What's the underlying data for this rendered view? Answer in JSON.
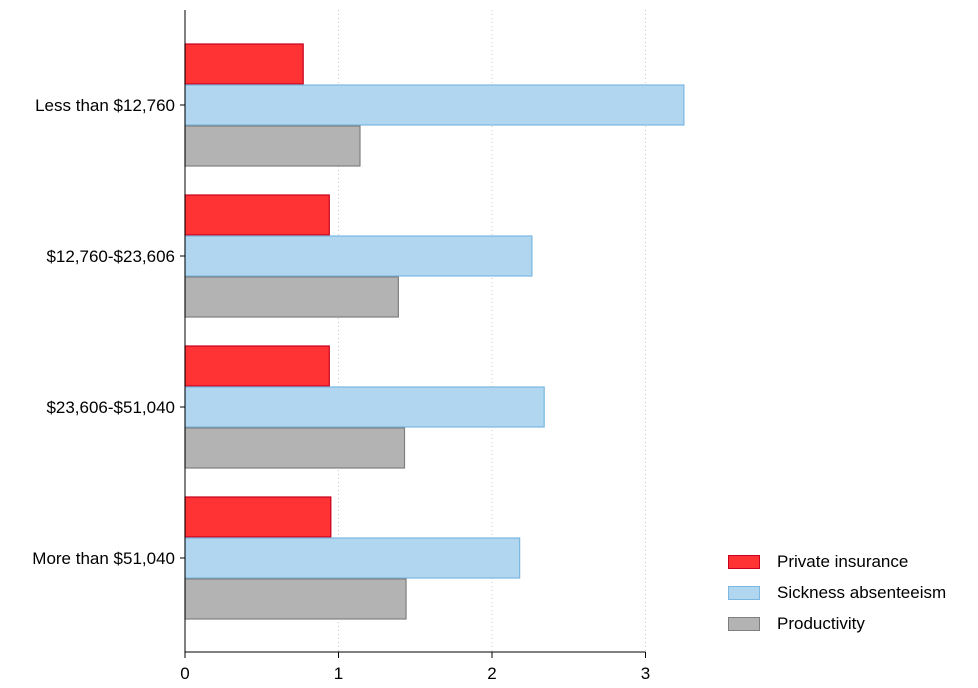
{
  "chart_data": {
    "type": "bar",
    "orientation": "horizontal",
    "categories": [
      "Less than $12,760",
      "$12,760-$23,606",
      "$23,606-$51,040",
      "More than $51,040"
    ],
    "series": [
      {
        "name": "Private insurance",
        "values": [
          0.77,
          0.94,
          0.94,
          0.95
        ],
        "color": "#ff3333",
        "border": "#c8001e"
      },
      {
        "name": "Sickness absenteeism",
        "values": [
          3.25,
          2.26,
          2.34,
          2.18
        ],
        "color": "#b0d6f0",
        "border": "#7ab8e2"
      },
      {
        "name": "Productivity",
        "values": [
          1.14,
          1.39,
          1.43,
          1.44
        ],
        "color": "#b3b3b3",
        "border": "#7f7f7f"
      }
    ],
    "xticks": [
      0,
      1,
      2,
      3
    ],
    "xlim": [
      0,
      3.27
    ],
    "grid": true,
    "legend_position": "bottom-right"
  }
}
